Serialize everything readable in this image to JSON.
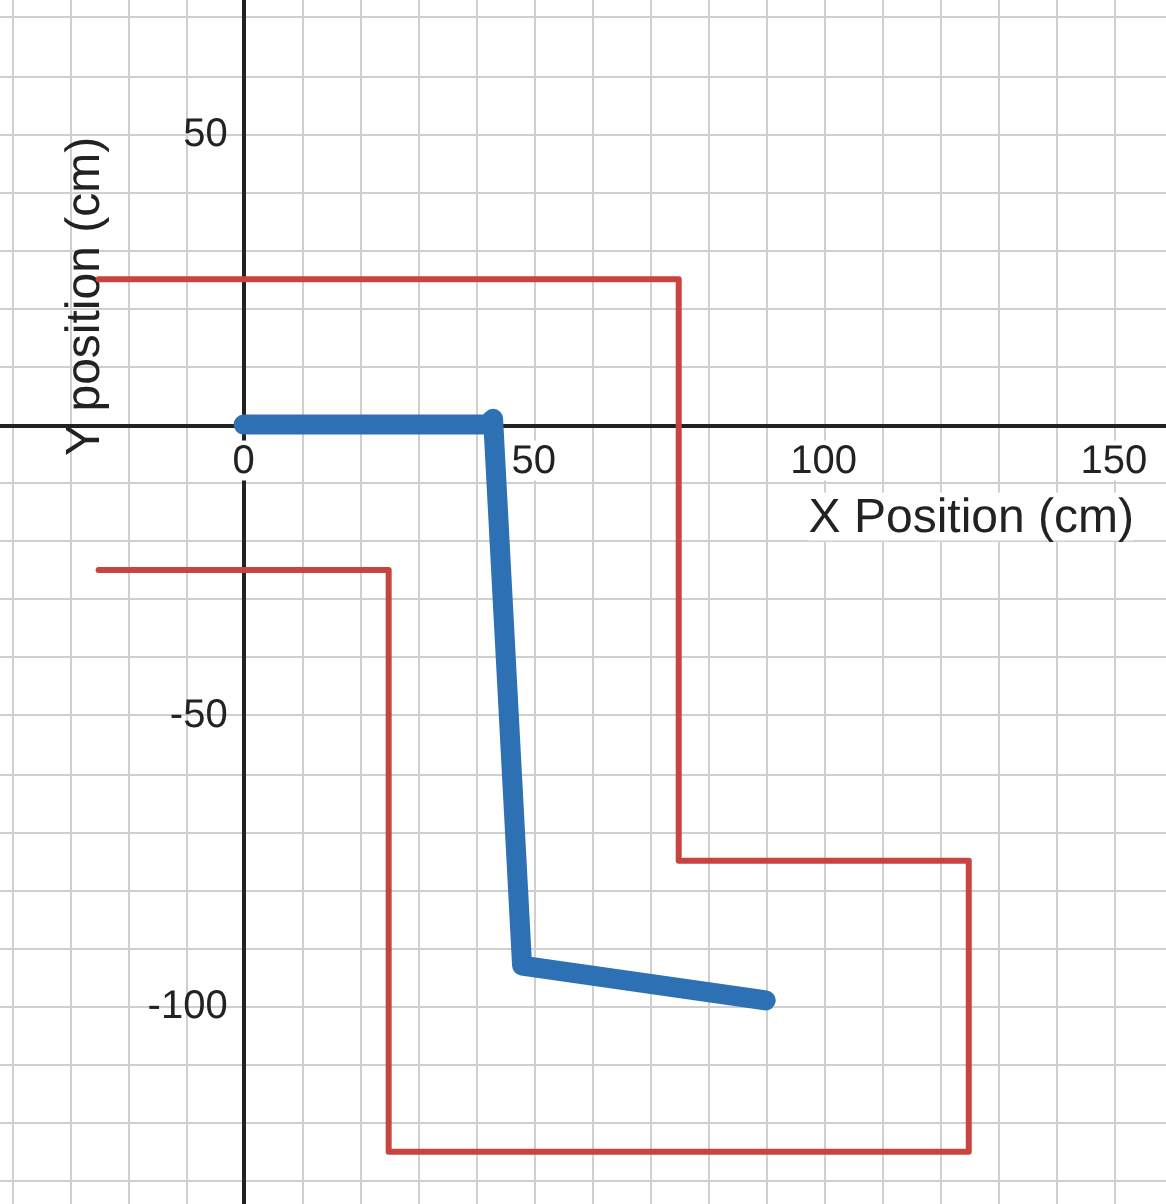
{
  "chart_data": {
    "type": "line",
    "xlabel": "X Position (cm)",
    "ylabel": "Y position (cm)",
    "xlim": [
      -42,
      159
    ],
    "ylim": [
      -134,
      73
    ],
    "xticks": [
      {
        "value": -40,
        "label": null
      },
      {
        "value": -30,
        "label": null
      },
      {
        "value": -20,
        "label": null
      },
      {
        "value": -10,
        "label": null
      },
      0,
      {
        "value": 10,
        "label": null
      },
      {
        "value": 20,
        "label": null
      },
      {
        "value": 30,
        "label": null
      },
      {
        "value": 40,
        "label": null
      },
      50,
      {
        "value": 60,
        "label": null
      },
      {
        "value": 70,
        "label": null
      },
      {
        "value": 80,
        "label": null
      },
      {
        "value": 90,
        "label": null
      },
      100,
      {
        "value": 110,
        "label": null
      },
      {
        "value": 120,
        "label": null
      },
      {
        "value": 130,
        "label": null
      },
      {
        "value": 140,
        "label": null
      },
      150
    ],
    "yticks": [
      {
        "value": -130,
        "label": null
      },
      {
        "value": -120,
        "label": null
      },
      {
        "value": -110,
        "label": null
      },
      -100,
      {
        "value": -90,
        "label": null
      },
      {
        "value": -80,
        "label": null
      },
      {
        "value": -70,
        "label": null
      },
      {
        "value": -60,
        "label": null
      },
      -50,
      {
        "value": -40,
        "label": null
      },
      {
        "value": -30,
        "label": null
      },
      {
        "value": -20,
        "label": null
      },
      {
        "value": -10,
        "label": null
      },
      {
        "value": 0,
        "label": null
      },
      {
        "value": 10,
        "label": null
      },
      {
        "value": 20,
        "label": null
      },
      {
        "value": 30,
        "label": null
      },
      {
        "value": 40,
        "label": null
      },
      50,
      {
        "value": 60,
        "label": null
      },
      {
        "value": 70,
        "label": null
      }
    ],
    "grid": true,
    "marker": "none",
    "line_style": "solid",
    "series": [
      {
        "color": "#c74440",
        "x": [
          -25,
          75,
          75,
          125,
          125,
          25,
          25,
          -25
        ],
        "values": [
          25,
          25,
          -75,
          -75,
          -125,
          -125,
          -25,
          -25
        ]
      },
      {
        "color": "#2d70b3",
        "x": [
          0,
          42,
          43,
          48,
          90
        ],
        "values": [
          0,
          0,
          1,
          -93,
          -99
        ]
      }
    ]
  }
}
